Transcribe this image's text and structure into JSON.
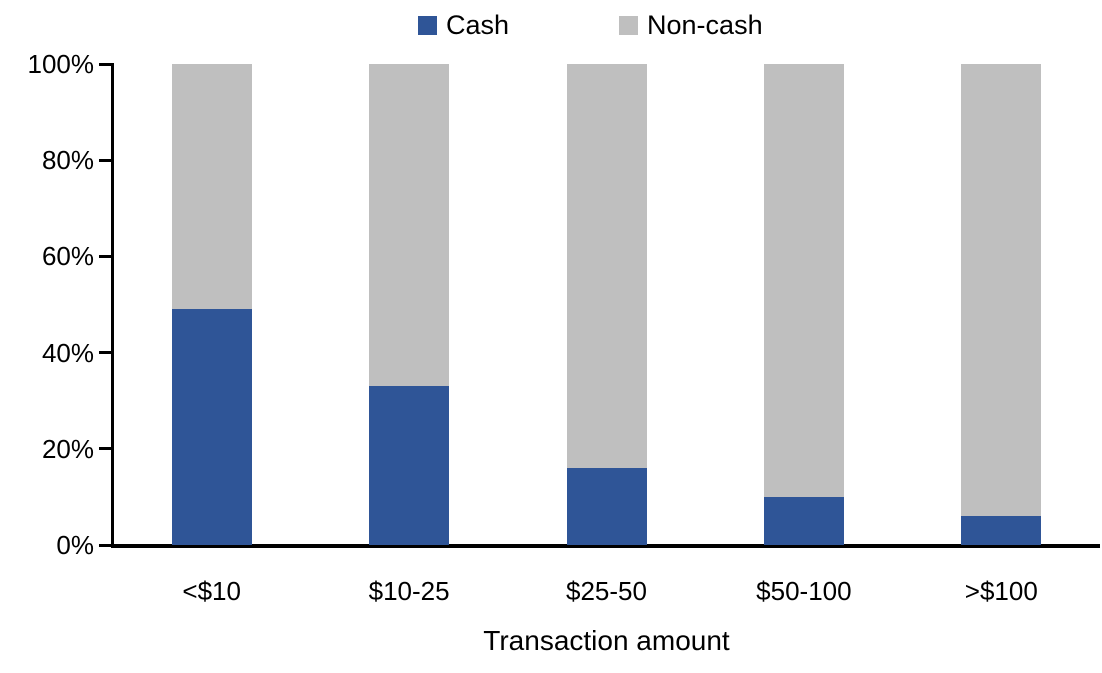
{
  "chart_data": {
    "type": "bar",
    "stacked": true,
    "title": "",
    "xlabel": "Transaction amount",
    "ylabel": "",
    "categories": [
      "<$10",
      "$10-25",
      "$25-50",
      "$50-100",
      ">$100"
    ],
    "series": [
      {
        "name": "Cash",
        "color": "#2F5597",
        "values": [
          49,
          33,
          16,
          10,
          6
        ]
      },
      {
        "name": "Non-cash",
        "color": "#BFBFBF",
        "values": [
          51,
          67,
          84,
          90,
          94
        ]
      }
    ],
    "ylim": [
      0,
      100
    ],
    "ytick_values": [
      0,
      20,
      40,
      60,
      80,
      100
    ],
    "ytick_labels": [
      "0%",
      "20%",
      "40%",
      "60%",
      "80%",
      "100%"
    ],
    "legend_position": "top",
    "grid": false,
    "axis_color": "#000000",
    "background_color": "#FFFFFF"
  }
}
